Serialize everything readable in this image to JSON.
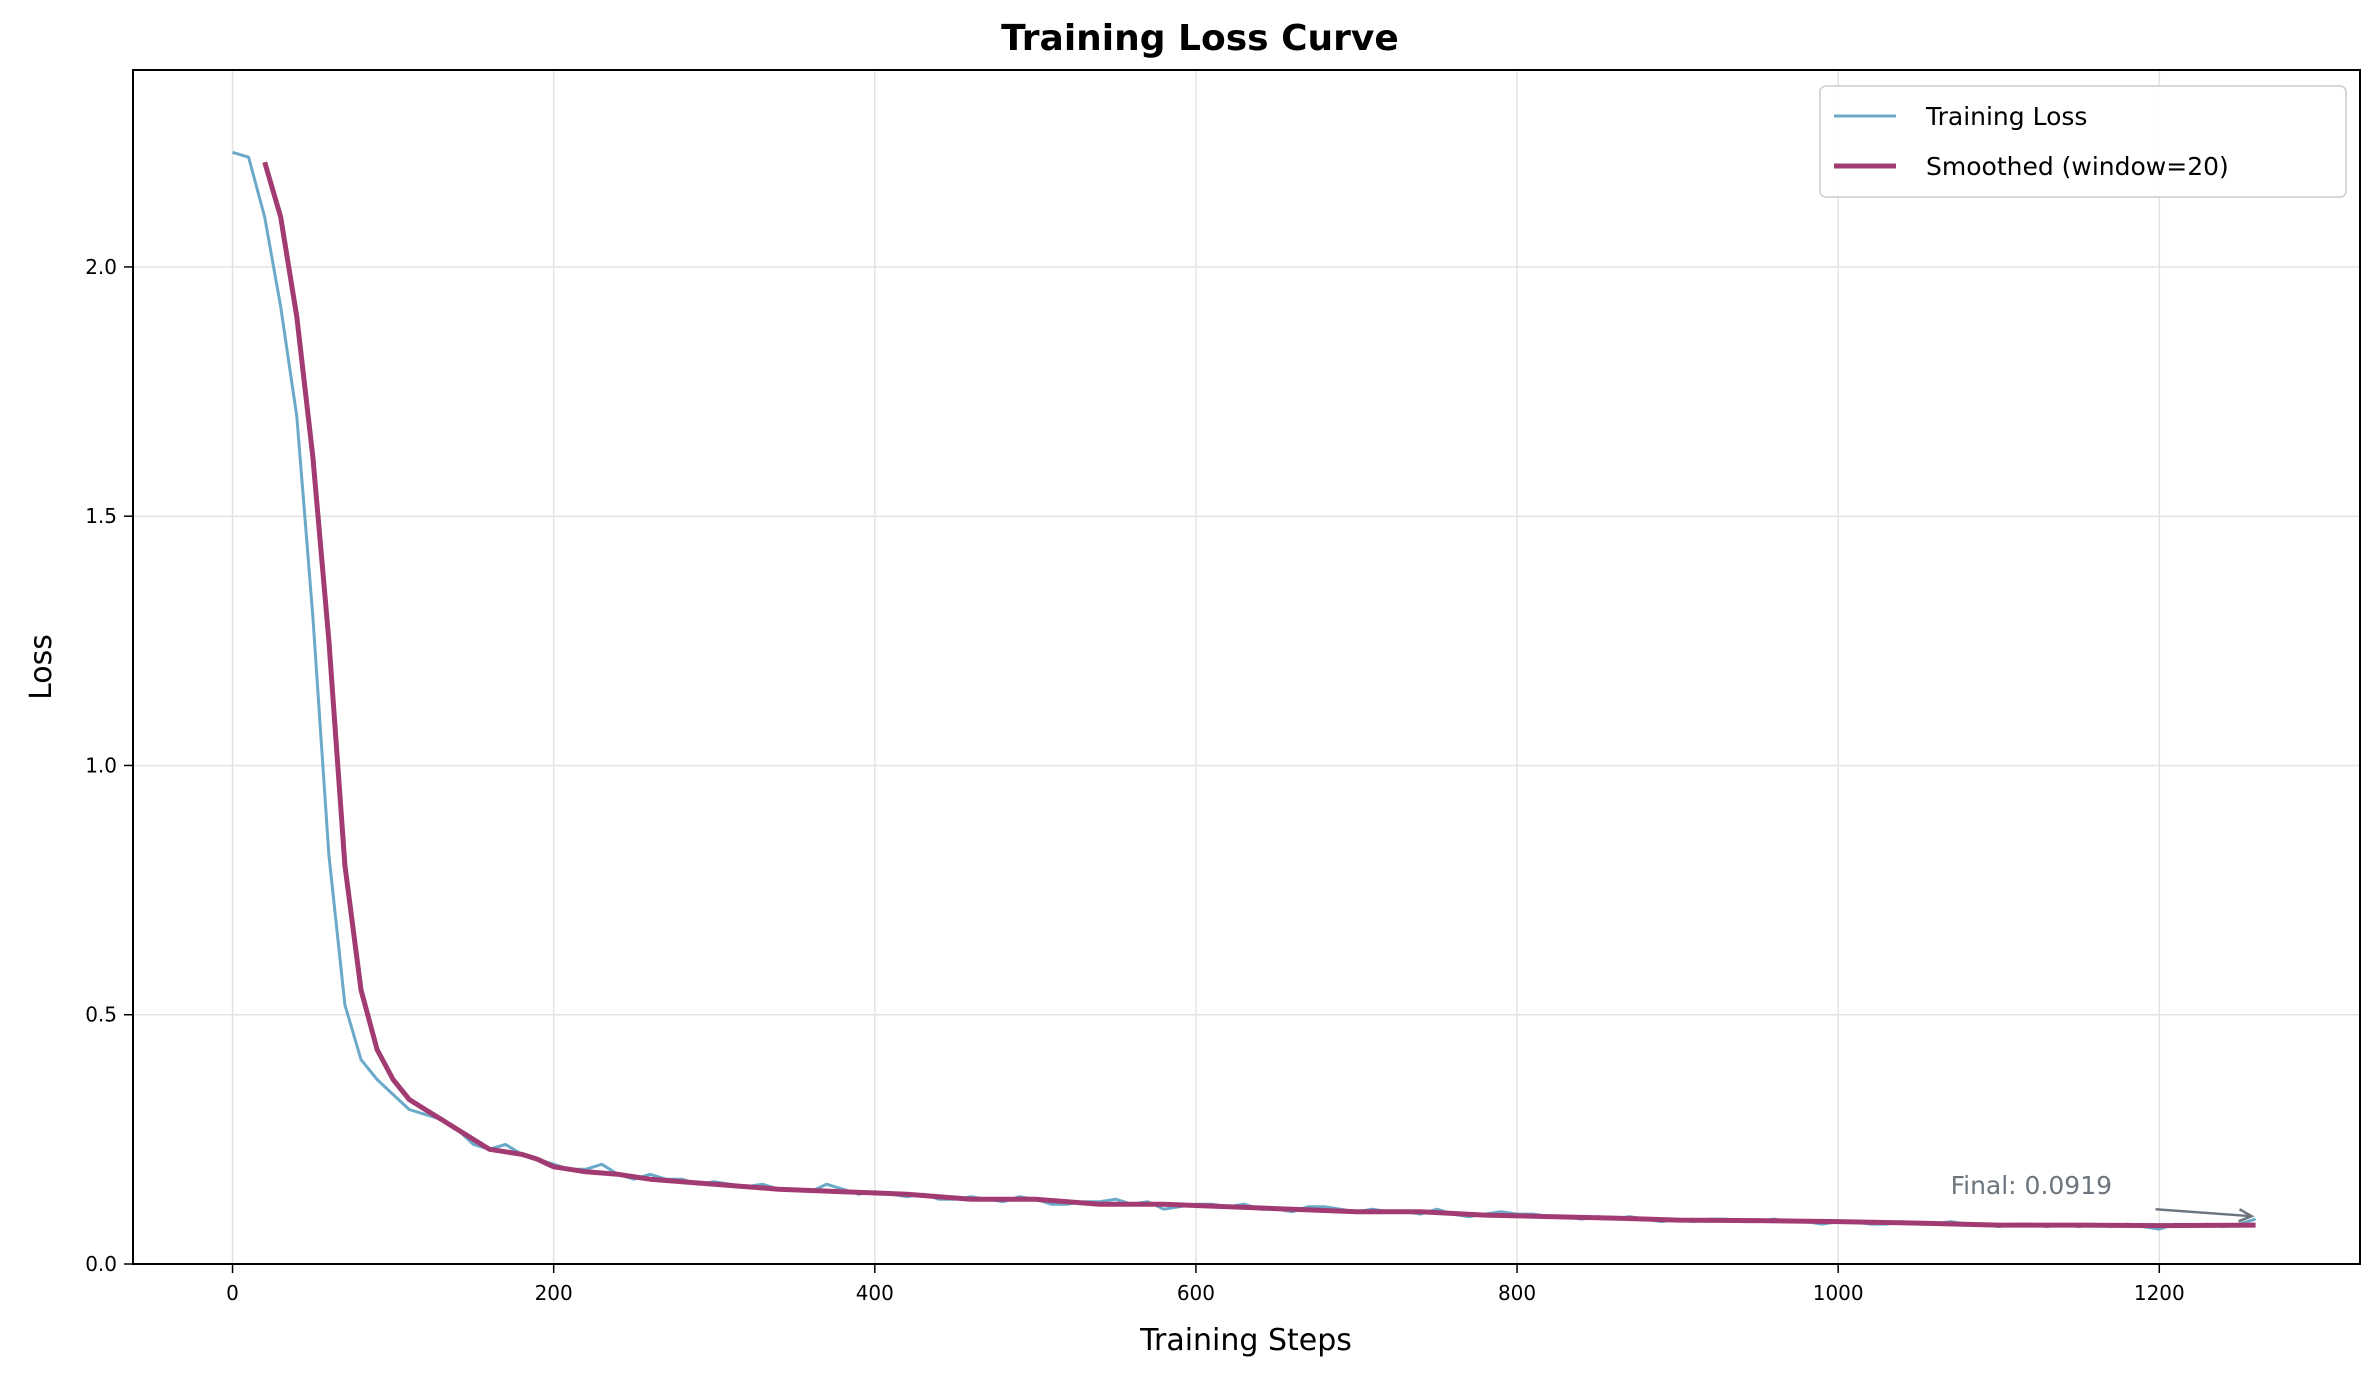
{
  "chart_data": {
    "type": "line",
    "title": "Training Loss Curve",
    "xlabel": "Training Steps",
    "ylabel": "Loss",
    "xlim": [
      -62,
      1325
    ],
    "ylim": [
      0,
      2.395
    ],
    "xticks": [
      0,
      200,
      400,
      600,
      800,
      1000,
      1200
    ],
    "xtick_labels": [
      "0",
      "200",
      "400",
      "600",
      "800",
      "1000",
      "1200"
    ],
    "yticks": [
      0,
      0.5,
      1.0,
      1.5,
      2.0
    ],
    "ytick_labels": [
      "0.0",
      "0.5",
      "1.0",
      "1.5",
      "2.0"
    ],
    "grid": true,
    "legend_position": "top-right",
    "series": [
      {
        "name": "Training Loss",
        "color": "#6aaac8",
        "x": [
          0,
          10,
          20,
          30,
          40,
          50,
          60,
          70,
          80,
          90,
          100,
          110,
          120,
          130,
          140,
          150,
          160,
          170,
          180,
          190,
          200,
          210,
          220,
          230,
          240,
          250,
          260,
          270,
          280,
          290,
          300,
          310,
          320,
          330,
          340,
          350,
          360,
          370,
          380,
          390,
          400,
          410,
          420,
          430,
          440,
          450,
          460,
          470,
          480,
          490,
          500,
          510,
          520,
          530,
          540,
          550,
          560,
          570,
          580,
          590,
          600,
          610,
          620,
          630,
          640,
          650,
          660,
          670,
          680,
          690,
          700,
          710,
          720,
          730,
          740,
          750,
          760,
          770,
          780,
          790,
          800,
          810,
          820,
          830,
          840,
          850,
          860,
          870,
          880,
          890,
          900,
          910,
          920,
          930,
          940,
          950,
          960,
          970,
          980,
          990,
          1000,
          1010,
          1020,
          1030,
          1040,
          1050,
          1060,
          1070,
          1080,
          1090,
          1100,
          1110,
          1120,
          1130,
          1140,
          1150,
          1160,
          1170,
          1180,
          1190,
          1200,
          1210,
          1220,
          1230,
          1240,
          1250,
          1260
        ],
        "y": [
          2.23,
          2.22,
          2.1,
          1.92,
          1.7,
          1.3,
          0.82,
          0.52,
          0.41,
          0.37,
          0.34,
          0.31,
          0.3,
          0.29,
          0.27,
          0.24,
          0.23,
          0.24,
          0.22,
          0.21,
          0.2,
          0.19,
          0.19,
          0.2,
          0.18,
          0.17,
          0.18,
          0.17,
          0.17,
          0.16,
          0.165,
          0.16,
          0.155,
          0.16,
          0.15,
          0.15,
          0.145,
          0.16,
          0.15,
          0.14,
          0.145,
          0.14,
          0.135,
          0.14,
          0.13,
          0.13,
          0.135,
          0.13,
          0.125,
          0.135,
          0.13,
          0.12,
          0.12,
          0.125,
          0.125,
          0.13,
          0.12,
          0.125,
          0.11,
          0.115,
          0.12,
          0.12,
          0.115,
          0.12,
          0.11,
          0.11,
          0.105,
          0.115,
          0.115,
          0.11,
          0.105,
          0.11,
          0.105,
          0.105,
          0.1,
          0.11,
          0.1,
          0.095,
          0.1,
          0.105,
          0.1,
          0.1,
          0.095,
          0.095,
          0.09,
          0.095,
          0.09,
          0.095,
          0.09,
          0.085,
          0.09,
          0.085,
          0.09,
          0.09,
          0.085,
          0.085,
          0.09,
          0.085,
          0.085,
          0.08,
          0.085,
          0.085,
          0.08,
          0.08,
          0.085,
          0.08,
          0.08,
          0.085,
          0.08,
          0.08,
          0.075,
          0.08,
          0.08,
          0.075,
          0.08,
          0.075,
          0.08,
          0.075,
          0.08,
          0.075,
          0.07,
          0.08,
          0.075,
          0.08,
          0.075,
          0.08,
          0.09
        ]
      },
      {
        "name": "Smoothed (window=20)",
        "color": "#a23b72",
        "x": [
          20,
          30,
          40,
          50,
          60,
          70,
          80,
          90,
          100,
          110,
          120,
          130,
          140,
          150,
          160,
          170,
          180,
          190,
          200,
          220,
          240,
          260,
          280,
          300,
          340,
          380,
          420,
          460,
          500,
          540,
          580,
          620,
          660,
          700,
          740,
          780,
          820,
          860,
          900,
          950,
          1000,
          1050,
          1100,
          1150,
          1200,
          1260
        ],
        "y": [
          2.21,
          2.1,
          1.9,
          1.62,
          1.25,
          0.8,
          0.55,
          0.43,
          0.37,
          0.33,
          0.31,
          0.29,
          0.27,
          0.25,
          0.23,
          0.225,
          0.22,
          0.21,
          0.195,
          0.185,
          0.18,
          0.17,
          0.165,
          0.16,
          0.15,
          0.145,
          0.14,
          0.13,
          0.13,
          0.12,
          0.12,
          0.115,
          0.11,
          0.105,
          0.105,
          0.098,
          0.095,
          0.092,
          0.088,
          0.087,
          0.085,
          0.082,
          0.078,
          0.078,
          0.077,
          0.078
        ]
      }
    ],
    "annotations": [
      {
        "text": "Final: 0.0919",
        "xy": [
          1260,
          0.0919
        ],
        "xytext": [
          1070,
          0.14
        ],
        "color": "#6c757d"
      }
    ]
  }
}
